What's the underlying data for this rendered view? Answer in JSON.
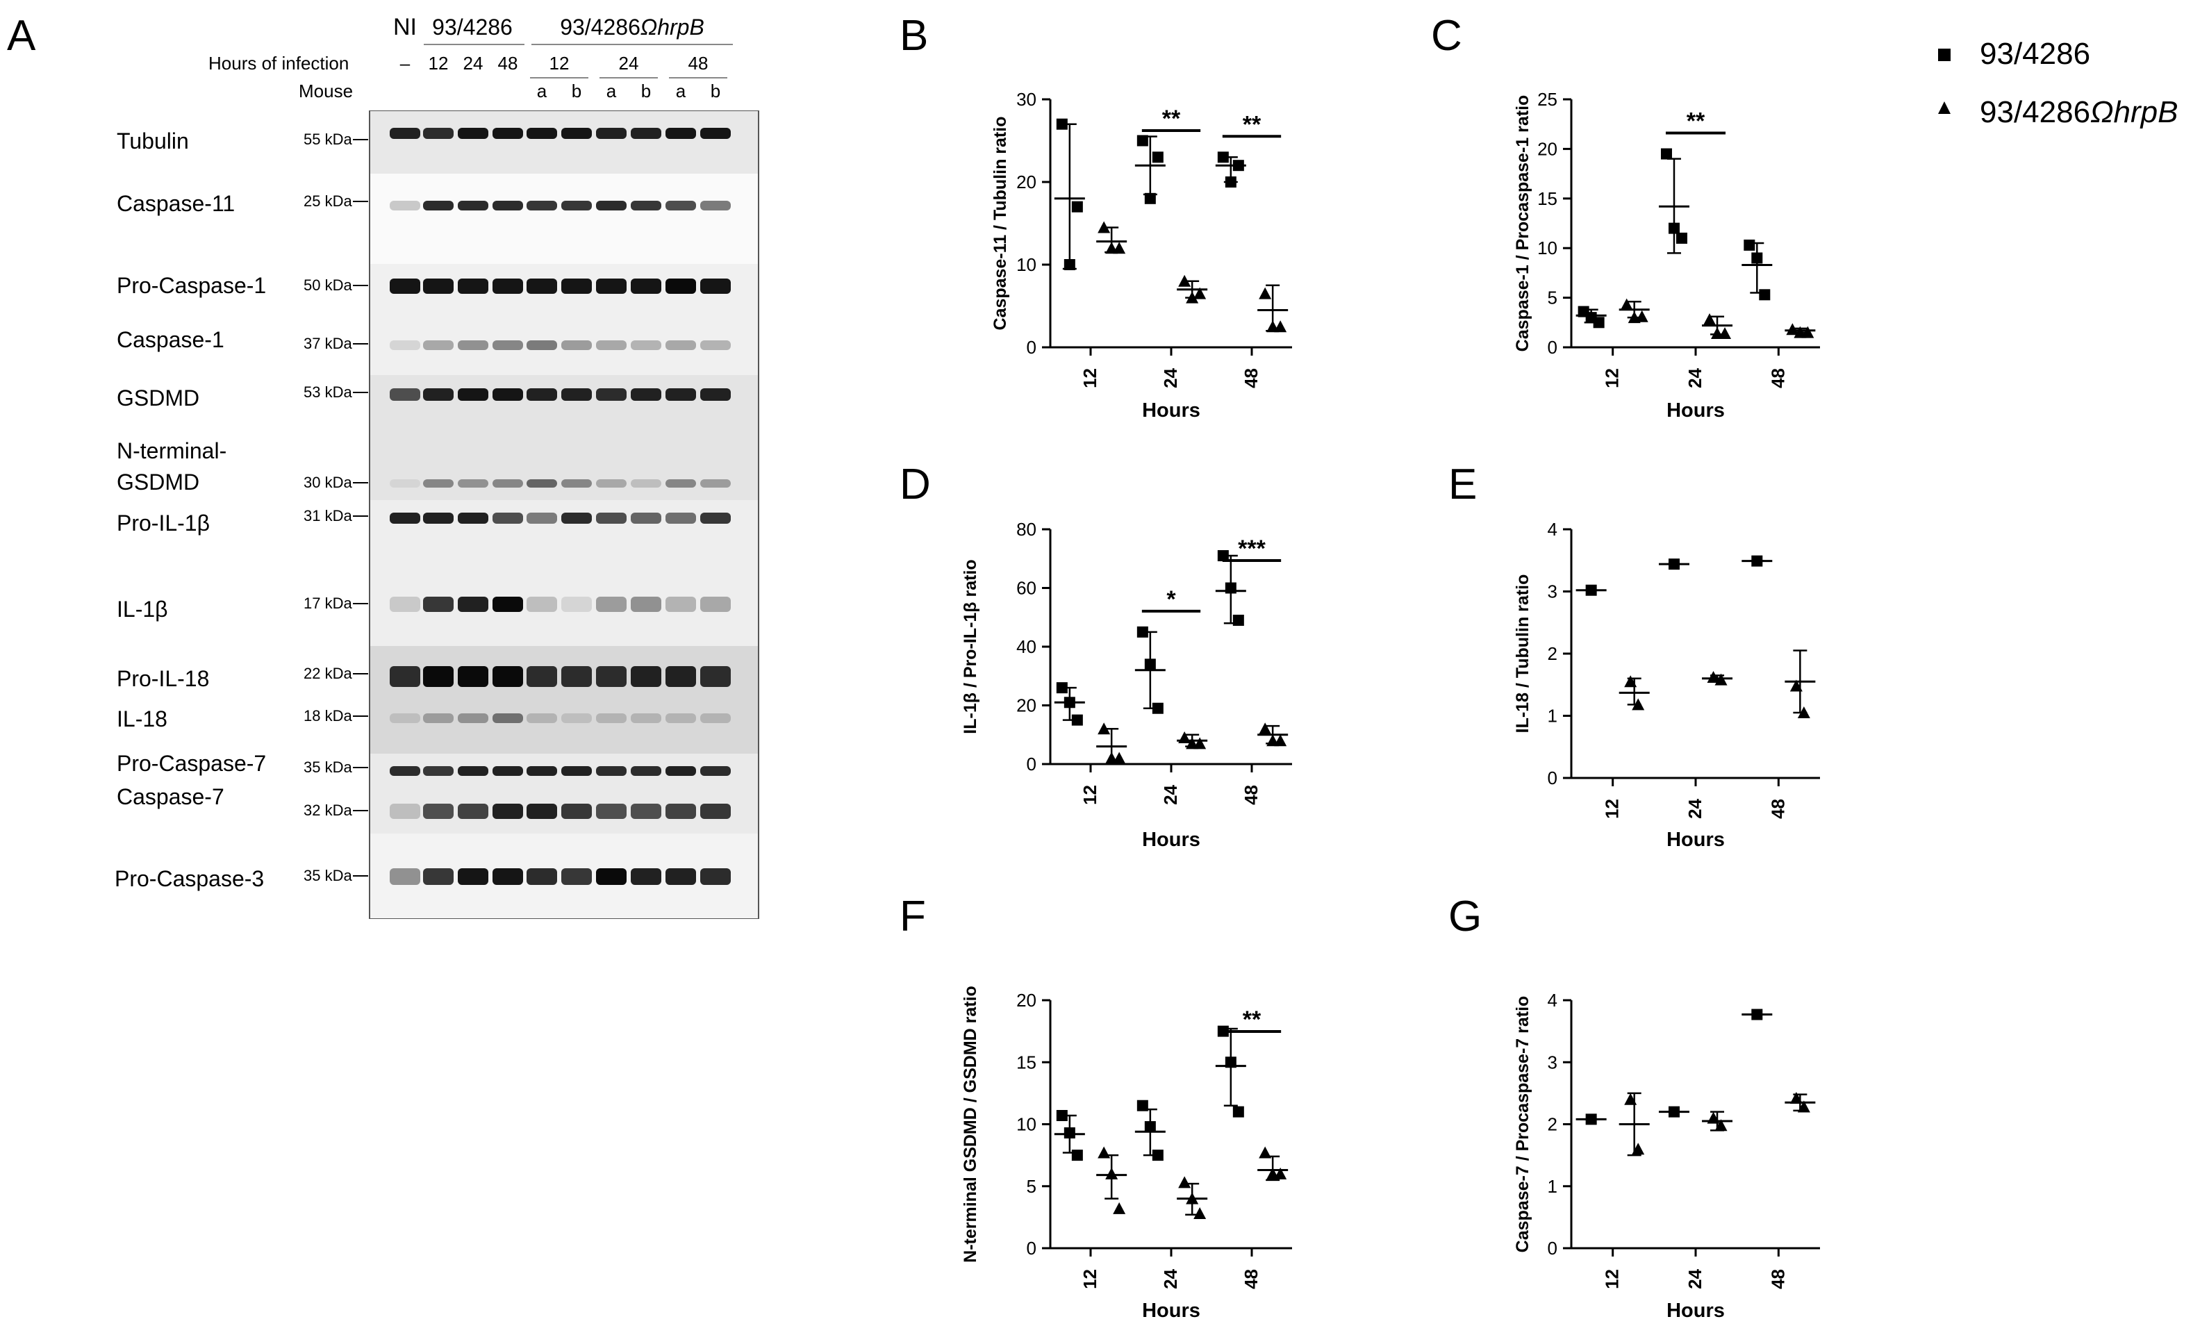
{
  "panel_letters": [
    "A",
    "B",
    "C",
    "D",
    "E",
    "F",
    "G"
  ],
  "legend": {
    "items": [
      {
        "marker": "square",
        "label": "93/4286"
      },
      {
        "marker": "triangle",
        "label_main": "93/4286",
        "label_italic": "ΩhrpB"
      }
    ]
  },
  "blot": {
    "header_ni": "NI",
    "group1_label": "93/4286",
    "group2_label_main": "93/4286",
    "group2_label_italic": "ΩhrpB",
    "hours_row_label": "Hours of infection",
    "mouse_row_label": "Mouse",
    "hours": [
      "–",
      "12",
      "24",
      "48",
      "12",
      "24",
      "48"
    ],
    "mice": [
      "a",
      "b",
      "a",
      "b",
      "a",
      "b"
    ],
    "proteins": [
      "Tubulin",
      "Caspase-11",
      "Pro-Caspase-1",
      "Caspase-1",
      "GSDMD",
      "N-terminal-",
      "GSDMD",
      "Pro-IL-1β",
      "IL-1β",
      "Pro-IL-18",
      "IL-18",
      "Pro-Caspase-7",
      "Caspase-7",
      "Pro-Caspase-3"
    ],
    "mw": [
      "55 kDa",
      "25 kDa",
      "50 kDa",
      "37 kDa",
      "53 kDa",
      "30 kDa",
      "31 kDa",
      "17 kDa",
      "22 kDa",
      "18 kDa",
      "35 kDa",
      "32 kDa",
      "35 kDa"
    ]
  },
  "chart_data": [
    {
      "panel": "B",
      "type": "scatter",
      "xlabel": "Hours",
      "ylabel": "Caspase-11 / Tubulin ratio",
      "categories": [
        "12",
        "24",
        "48"
      ],
      "ylim": [
        0,
        30
      ],
      "yticks": [
        0,
        10,
        20,
        30
      ],
      "series": [
        {
          "name": "93/4286",
          "marker": "square",
          "points": [
            [
              27,
              10,
              17
            ],
            [
              25,
              18,
              23
            ],
            [
              23,
              20,
              22
            ]
          ],
          "mean": [
            18,
            22,
            22
          ],
          "sd_low": [
            9.5,
            18.5,
            20
          ],
          "sd_high": [
            27,
            25.5,
            23
          ]
        },
        {
          "name": "93/4286ΩhrpB",
          "marker": "triangle",
          "points": [
            [
              14.5,
              12,
              12
            ],
            [
              8,
              6,
              6.5
            ],
            [
              6.5,
              2.5,
              2.5
            ]
          ],
          "mean": [
            12.8,
            7,
            4.5
          ],
          "sd_low": [
            11.5,
            6,
            2
          ],
          "sd_high": [
            14.5,
            8,
            7.5
          ]
        }
      ],
      "significance": [
        {
          "category": "24",
          "label": "**"
        },
        {
          "category": "48",
          "label": "**"
        }
      ]
    },
    {
      "panel": "C",
      "type": "scatter",
      "xlabel": "Hours",
      "ylabel": "Caspase-1 / Procaspase-1 ratio",
      "categories": [
        "12",
        "24",
        "48"
      ],
      "ylim": [
        0,
        25
      ],
      "yticks": [
        0,
        5,
        10,
        15,
        20,
        25
      ],
      "series": [
        {
          "name": "93/4286",
          "marker": "square",
          "points": [
            [
              3.6,
              3.0,
              2.5
            ],
            [
              19.5,
              12,
              11
            ],
            [
              10.3,
              9,
              5.3
            ]
          ],
          "mean": [
            3.2,
            14.2,
            8.3
          ],
          "sd_low": [
            2.5,
            9.5,
            5.5
          ],
          "sd_high": [
            3.8,
            19,
            10.5
          ]
        },
        {
          "name": "93/4286ΩhrpB",
          "marker": "triangle",
          "points": [
            [
              4.3,
              3.0,
              3.1
            ],
            [
              2.8,
              1.4,
              1.4
            ],
            [
              1.8,
              1.5,
              1.5
            ]
          ],
          "mean": [
            3.8,
            2.2,
            1.7
          ],
          "sd_low": [
            3.0,
            1.3,
            1.5
          ],
          "sd_high": [
            4.6,
            3.1,
            1.9
          ]
        }
      ],
      "significance": [
        {
          "category": "24",
          "label": "**"
        }
      ]
    },
    {
      "panel": "D",
      "type": "scatter",
      "xlabel": "Hours",
      "ylabel": "IL-1β / Pro-IL-1β ratio",
      "categories": [
        "12",
        "24",
        "48"
      ],
      "ylim": [
        0,
        80
      ],
      "yticks": [
        0,
        20,
        40,
        60,
        80
      ],
      "reference_line": 0,
      "series": [
        {
          "name": "93/4286",
          "marker": "square",
          "points": [
            [
              26,
              21,
              15
            ],
            [
              45,
              34,
              19
            ],
            [
              71,
              60,
              49
            ]
          ],
          "mean": [
            21,
            32,
            59
          ],
          "sd_low": [
            15,
            19,
            48
          ],
          "sd_high": [
            26,
            45,
            71
          ]
        },
        {
          "name": "93/4286ΩhrpB",
          "marker": "triangle",
          "points": [
            [
              12,
              2,
              2
            ],
            [
              9,
              7,
              7
            ],
            [
              12,
              8,
              8
            ]
          ],
          "mean": [
            6,
            8,
            10
          ],
          "sd_low": [
            0,
            6,
            7
          ],
          "sd_high": [
            12,
            10,
            13
          ]
        }
      ],
      "significance": [
        {
          "category": "24",
          "label": "*"
        },
        {
          "category": "48",
          "label": "***"
        }
      ]
    },
    {
      "panel": "E",
      "type": "scatter",
      "xlabel": "Hours",
      "ylabel": "IL-18 / Tubulin ratio",
      "categories": [
        "12",
        "24",
        "48"
      ],
      "ylim": [
        0,
        4
      ],
      "yticks": [
        0,
        1,
        2,
        3,
        4
      ],
      "series": [
        {
          "name": "93/4286",
          "marker": "square",
          "points": [
            [
              3.02
            ],
            [
              3.44
            ],
            [
              3.49
            ]
          ],
          "mean": [
            3.02,
            3.44,
            3.49
          ],
          "sd_low": [
            3.02,
            3.44,
            3.49
          ],
          "sd_high": [
            3.02,
            3.44,
            3.49
          ]
        },
        {
          "name": "93/4286ΩhrpB",
          "marker": "triangle",
          "points": [
            [
              1.55,
              1.18
            ],
            [
              1.62,
              1.58
            ],
            [
              1.48,
              1.05
            ]
          ],
          "mean": [
            1.37,
            1.6,
            1.55
          ],
          "sd_low": [
            1.18,
            1.55,
            1.05
          ],
          "sd_high": [
            1.6,
            1.65,
            2.05
          ]
        }
      ],
      "significance": []
    },
    {
      "panel": "F",
      "type": "scatter",
      "xlabel": "Hours",
      "ylabel": "N-terminal GSDMD / GSDMD ratio",
      "categories": [
        "12",
        "24",
        "48"
      ],
      "ylim": [
        0,
        20
      ],
      "yticks": [
        0,
        5,
        10,
        15,
        20
      ],
      "series": [
        {
          "name": "93/4286",
          "marker": "square",
          "points": [
            [
              10.7,
              9.3,
              7.5
            ],
            [
              11.5,
              9.8,
              7.5
            ],
            [
              17.5,
              15,
              11
            ]
          ],
          "mean": [
            9.2,
            9.4,
            14.7
          ],
          "sd_low": [
            7.7,
            7.5,
            11.5
          ],
          "sd_high": [
            10.7,
            11.2,
            17.7
          ]
        },
        {
          "name": "93/4286ΩhrpB",
          "marker": "triangle",
          "points": [
            [
              7.7,
              6.0,
              3.2
            ],
            [
              5.3,
              4.0,
              2.8
            ],
            [
              7.7,
              6.0,
              6.0
            ]
          ],
          "mean": [
            5.9,
            4.0,
            6.3
          ],
          "sd_low": [
            4.0,
            2.7,
            5.5
          ],
          "sd_high": [
            7.5,
            5.2,
            7.4
          ]
        }
      ],
      "significance": [
        {
          "category": "48",
          "label": "**"
        }
      ]
    },
    {
      "panel": "G",
      "type": "scatter",
      "xlabel": "Hours",
      "ylabel": "Caspase-7 / Procaspase-7 ratio",
      "categories": [
        "12",
        "24",
        "48"
      ],
      "ylim": [
        0,
        4
      ],
      "yticks": [
        0,
        1,
        2,
        3,
        4
      ],
      "series": [
        {
          "name": "93/4286",
          "marker": "square",
          "points": [
            [
              2.08
            ],
            [
              2.2
            ],
            [
              3.77
            ]
          ],
          "mean": [
            2.08,
            2.2,
            3.77
          ],
          "sd_low": [
            2.08,
            2.2,
            3.77
          ],
          "sd_high": [
            2.08,
            2.2,
            3.77
          ]
        },
        {
          "name": "93/4286ΩhrpB",
          "marker": "triangle",
          "points": [
            [
              2.4,
              1.6
            ],
            [
              2.1,
              1.98
            ],
            [
              2.42,
              2.28
            ]
          ],
          "mean": [
            2.0,
            2.05,
            2.35
          ],
          "sd_low": [
            1.5,
            1.9,
            2.22
          ],
          "sd_high": [
            2.5,
            2.2,
            2.48
          ]
        }
      ],
      "significance": []
    }
  ]
}
